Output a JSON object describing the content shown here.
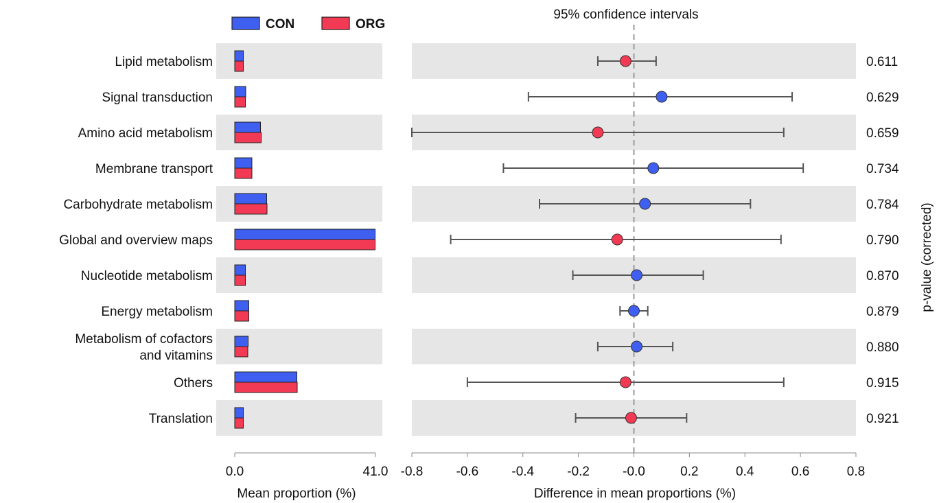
{
  "chart_data": {
    "type": "bar",
    "colors": {
      "con": "#3f5ff0",
      "org": "#f23a54"
    },
    "legend": {
      "placement": "top-left",
      "entries": [
        "CON",
        "ORG"
      ]
    },
    "categories": [
      "Lipid metabolism",
      "Signal transduction",
      "Amino acid metabolism",
      "Membrane transport",
      "Carbohydrate metabolism",
      "Global and overview maps",
      "Nucleotide metabolism",
      "Energy metabolism",
      "Metabolism of cofactors and vitamins",
      "Others",
      "Translation"
    ],
    "category_label_lines": [
      [
        "Lipid metabolism"
      ],
      [
        "Signal transduction"
      ],
      [
        "Amino acid metabolism"
      ],
      [
        "Membrane transport"
      ],
      [
        "Carbohydrate metabolism"
      ],
      [
        "Global and overview maps"
      ],
      [
        "Nucleotide metabolism"
      ],
      [
        "Energy metabolism"
      ],
      [
        "Metabolism of cofactors",
        "and vitamins"
      ],
      [
        "Others"
      ],
      [
        "Translation"
      ]
    ],
    "bar_panel": {
      "xlabel": "Mean proportion (%)",
      "xlim": [
        0,
        41.0
      ],
      "tick_labels": [
        "0.0",
        "41.0"
      ],
      "series": [
        {
          "name": "CON",
          "values": [
            2.5,
            3.2,
            7.5,
            5.0,
            9.3,
            40.9,
            3.1,
            4.1,
            3.9,
            18.1,
            2.5
          ]
        },
        {
          "name": "ORG",
          "values": [
            2.5,
            3.1,
            7.7,
            5.0,
            9.4,
            40.9,
            3.1,
            4.1,
            3.8,
            18.2,
            2.5
          ]
        }
      ]
    },
    "ci_panel": {
      "title": "95% confidence intervals",
      "xlabel": "Difference in mean proportions (%)",
      "xlim": [
        -0.8,
        0.8
      ],
      "ticks": [
        -0.8,
        -0.6,
        -0.4,
        -0.2,
        0.0,
        0.2,
        0.4,
        0.6,
        0.8
      ],
      "tick_labels": [
        "-0.8",
        "-0.6",
        "-0.4",
        "-0.2",
        "-0.0",
        "0.2",
        "0.4",
        "0.6",
        "0.8"
      ],
      "reference_line": 0.0,
      "points": [
        {
          "estimate": -0.03,
          "lower": -0.13,
          "upper": 0.08,
          "higher_in": "ORG"
        },
        {
          "estimate": 0.1,
          "lower": -0.38,
          "upper": 0.57,
          "higher_in": "CON"
        },
        {
          "estimate": -0.13,
          "lower": -0.8,
          "upper": 0.54,
          "higher_in": "ORG"
        },
        {
          "estimate": 0.07,
          "lower": -0.47,
          "upper": 0.61,
          "higher_in": "CON"
        },
        {
          "estimate": 0.04,
          "lower": -0.34,
          "upper": 0.42,
          "higher_in": "CON"
        },
        {
          "estimate": -0.06,
          "lower": -0.66,
          "upper": 0.53,
          "higher_in": "ORG"
        },
        {
          "estimate": 0.01,
          "lower": -0.22,
          "upper": 0.25,
          "higher_in": "CON"
        },
        {
          "estimate": 0.0,
          "lower": -0.05,
          "upper": 0.05,
          "higher_in": "CON"
        },
        {
          "estimate": 0.01,
          "lower": -0.13,
          "upper": 0.14,
          "higher_in": "CON"
        },
        {
          "estimate": -0.03,
          "lower": -0.6,
          "upper": 0.54,
          "higher_in": "ORG"
        },
        {
          "estimate": -0.01,
          "lower": -0.21,
          "upper": 0.19,
          "higher_in": "ORG"
        }
      ]
    },
    "p_values": {
      "label": "p-value (corrected)",
      "values": [
        "0.611",
        "0.629",
        "0.659",
        "0.734",
        "0.784",
        "0.790",
        "0.870",
        "0.879",
        "0.880",
        "0.915",
        "0.921"
      ]
    },
    "grid": false
  }
}
